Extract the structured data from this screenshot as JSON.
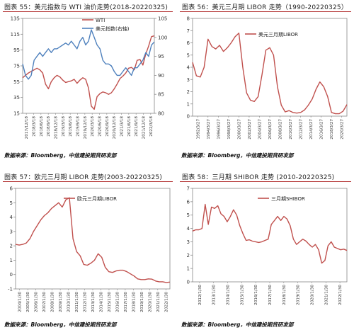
{
  "figures": [
    {
      "title": "图表 55：美元指数与 WTI 油价走势(2018-20220325)",
      "source": "数据来源：Bloomberg，中信建投期货研发部"
    },
    {
      "title": "图表 56：美元三月期 LIBOR 走势（1990-20220325）",
      "source": "数据来源：Bloomberg，中信建投期货研发部"
    },
    {
      "title": "图表 57：欧元三月期 LIBOR 走势(2003-20220325)",
      "source": "数据来源：Bloomberg，中信建投期货研发部"
    },
    {
      "title": "图表 58：三月期 SHIBOR 走势 (2010-20220325)",
      "source": "数据来源：Bloomberg，中信建投期货研发部"
    }
  ],
  "colors": {
    "red": "#c0504d",
    "blue": "#4f81bd",
    "accent": "#b02a2a"
  },
  "chart_data": [
    {
      "type": "line",
      "ylim": [
        15,
        135
      ],
      "yticks": [
        15,
        35,
        55,
        75,
        95,
        115,
        135
      ],
      "y2lim": [
        80,
        105
      ],
      "y2ticks": [
        80,
        85,
        90,
        95,
        100,
        105
      ],
      "x_tick_labels": [
        "2017/12/18",
        "2018/3/18",
        "2018/6/18",
        "2018/9/18",
        "2018/12/18",
        "2019/3/18",
        "2019/6/18",
        "2019/9/18",
        "2019/12/18",
        "2020/3/18",
        "2020/6/18",
        "2020/9/18",
        "2020/12/18",
        "2021/3/18",
        "2021/6/18",
        "2021/9/18",
        "2021/12/18",
        "2022/3/18"
      ],
      "legend_position": "top-center",
      "series": [
        {
          "name": "WTI",
          "axis": "left",
          "color": "#c0504d",
          "values": [
            60,
            63,
            66,
            68,
            70,
            72,
            70,
            66,
            52,
            46,
            55,
            60,
            63,
            61,
            57,
            54,
            55,
            56,
            58,
            53,
            57,
            60,
            58,
            47,
            24,
            20,
            36,
            40,
            42,
            41,
            39,
            41,
            46,
            52,
            59,
            62,
            66,
            72,
            73,
            70,
            82,
            83,
            76,
            90,
            100,
            112,
            113
          ]
        },
        {
          "name": "美元指数(右轴)",
          "axis": "right",
          "color": "#4f81bd",
          "values": [
            93,
            90,
            89,
            90,
            94,
            95,
            96,
            95,
            96,
            97,
            96,
            97,
            97,
            97.5,
            98,
            98.5,
            98,
            99,
            98,
            97,
            99,
            100,
            98,
            99,
            102,
            100,
            98,
            97,
            94,
            93,
            93,
            92.5,
            91,
            90,
            90,
            91,
            92,
            91,
            90,
            92,
            92,
            93,
            94,
            96,
            95,
            98,
            98.8
          ]
        }
      ]
    },
    {
      "type": "line",
      "ylim": [
        0,
        8
      ],
      "yticks": [
        0,
        1,
        2,
        3,
        4,
        5,
        6,
        7,
        8
      ],
      "x_tick_labels": [
        "1992/3/27",
        "1994/3/27",
        "1996/3/27",
        "1998/3/27",
        "2000/3/27",
        "2002/3/27",
        "2004/3/27",
        "2006/3/27",
        "2008/3/27",
        "2010/3/27",
        "2012/3/27",
        "2014/3/27",
        "2016/3/27",
        "2018/3/27",
        "2020/3/27"
      ],
      "legend_position": "top-center",
      "series": [
        {
          "name": "美元三月期LIBOR",
          "color": "#c0504d",
          "values": [
            4.4,
            3.3,
            3.2,
            4.0,
            6.3,
            5.7,
            5.5,
            5.8,
            5.3,
            5.6,
            6.0,
            6.5,
            6.8,
            4.0,
            1.9,
            1.3,
            1.2,
            1.6,
            3.4,
            5.4,
            5.6,
            5.0,
            2.4,
            0.9,
            0.35,
            0.45,
            0.3,
            0.25,
            0.3,
            0.5,
            0.9,
            1.4,
            2.2,
            2.8,
            2.4,
            1.6,
            0.3,
            0.2,
            0.2,
            0.4,
            0.95
          ]
        }
      ]
    },
    {
      "type": "line",
      "ylim": [
        -1,
        6
      ],
      "yticks": [
        -1,
        0,
        1,
        2,
        3,
        4,
        5,
        6
      ],
      "x_tick_labels": [
        "2004/1/30",
        "2005/1/30",
        "2006/1/30",
        "2007/1/30",
        "2008/1/30",
        "2009/1/30",
        "2010/1/30",
        "2011/1/30",
        "2012/1/30",
        "2013/1/30",
        "2014/1/30",
        "2015/1/30",
        "2016/1/30",
        "2017/1/30",
        "2018/1/30",
        "2019/1/30",
        "2020/1/30",
        "2021/1/30",
        "2022/1/30"
      ],
      "legend_position": "top-center",
      "series": [
        {
          "name": "欧元三月期LIBOR",
          "color": "#c0504d",
          "values": [
            2.1,
            2.05,
            2.1,
            2.2,
            2.5,
            3.0,
            3.4,
            3.8,
            4.1,
            4.3,
            4.6,
            4.8,
            5.0,
            4.7,
            5.2,
            5.35,
            2.5,
            1.6,
            1.3,
            0.7,
            0.65,
            0.8,
            1.0,
            1.45,
            1.2,
            0.5,
            0.2,
            0.15,
            0.25,
            0.3,
            0.3,
            0.2,
            0.05,
            -0.1,
            -0.3,
            -0.35,
            -0.35,
            -0.3,
            -0.32,
            -0.45,
            -0.5,
            -0.5,
            -0.55,
            -0.52
          ]
        }
      ]
    },
    {
      "type": "line",
      "ylim": [
        0,
        7
      ],
      "yticks": [
        0,
        1,
        2,
        3,
        4,
        5,
        6,
        7
      ],
      "x_tick_labels": [
        "2012/1/30",
        "2013/1/30",
        "2014/1/30",
        "2015/1/30",
        "2016/1/30",
        "2017/1/30",
        "2018/1/30",
        "2019/1/30",
        "2020/1/30",
        "2021/1/30",
        "2022/1/30"
      ],
      "legend_position": "top-center",
      "series": [
        {
          "name": "三月期SHIBOR",
          "color": "#c0504d",
          "values": [
            3.8,
            3.9,
            3.9,
            4.0,
            5.8,
            4.3,
            5.6,
            5.5,
            5.7,
            5.1,
            4.9,
            4.5,
            4.9,
            5.4,
            5.0,
            4.2,
            3.6,
            3.1,
            3.15,
            3.05,
            3.0,
            2.95,
            3.0,
            3.1,
            3.2,
            4.3,
            4.6,
            4.9,
            4.6,
            4.9,
            4.7,
            4.2,
            3.2,
            2.8,
            3.0,
            3.2,
            3.05,
            2.8,
            2.6,
            2.8,
            2.4,
            1.4,
            1.6,
            2.7,
            3.0,
            2.6,
            2.5,
            2.4,
            2.45,
            2.35
          ]
        }
      ]
    }
  ]
}
